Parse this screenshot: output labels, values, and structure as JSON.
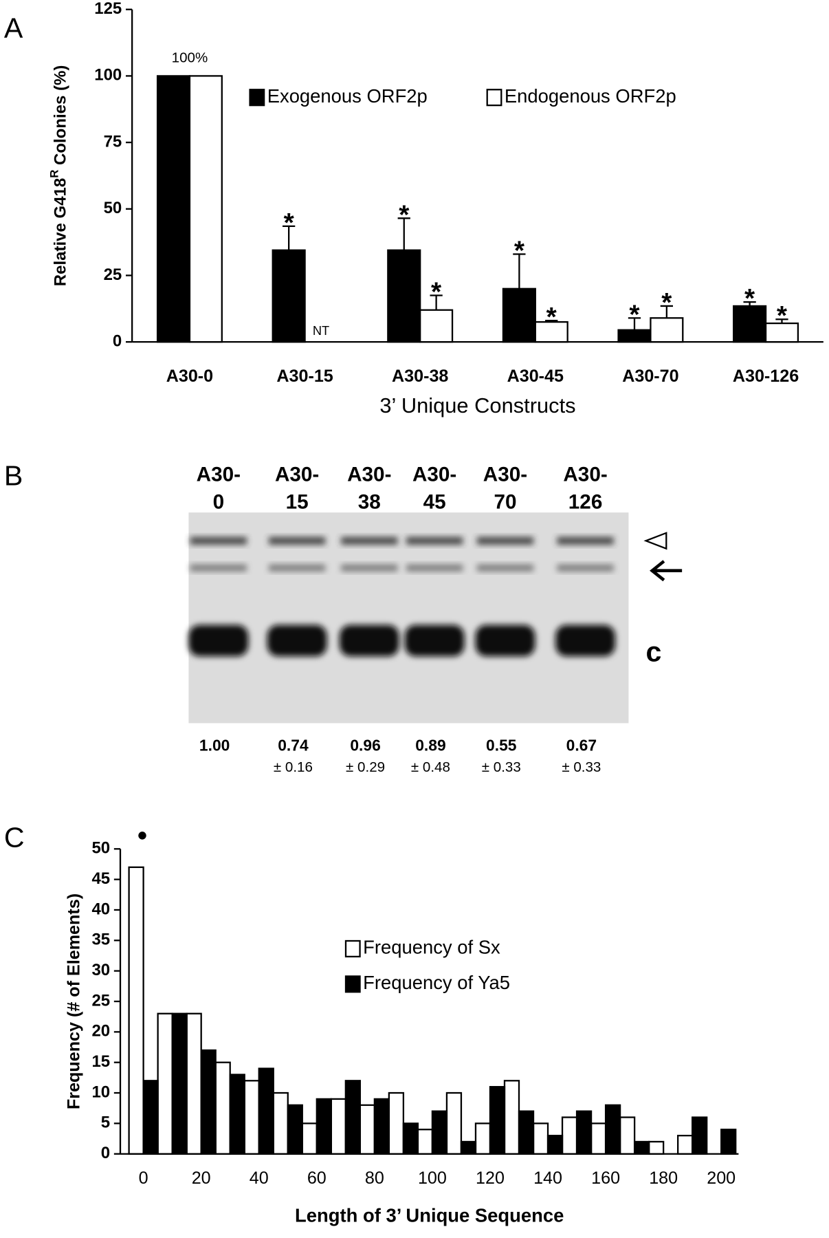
{
  "chart_data": [
    {
      "panel": "A",
      "type": "bar",
      "ylabel": [
        "Relative G418",
        "R",
        " Colonies (%)"
      ],
      "xlabel": "3’ Unique Constructs",
      "categories": [
        "A30-0",
        "A30-15",
        "A30-38",
        "A30-45",
        "A30-70",
        "A30-126"
      ],
      "series": [
        {
          "name": "Exogenous ORF2p",
          "color": "#000000",
          "values": [
            100,
            34.5,
            34.5,
            20,
            4.5,
            13.5
          ],
          "errors": [
            null,
            9,
            12,
            13,
            4.5,
            1.5
          ],
          "markers": [
            null,
            "*",
            "*",
            "*",
            "*",
            "*"
          ]
        },
        {
          "name": "Endogenous ORF2p",
          "color": "#ffffff",
          "values": [
            100,
            null,
            12,
            7.5,
            9,
            7
          ],
          "errors": [
            null,
            null,
            5.5,
            0.5,
            4.5,
            1.5
          ],
          "markers": [
            null,
            null,
            "*",
            "*",
            "*",
            "*"
          ],
          "value_labels": [
            null,
            "NT",
            null,
            null,
            null,
            null
          ]
        }
      ],
      "annotations": [
        "100%"
      ],
      "ylim": [
        0,
        125
      ],
      "yticks": [
        0,
        25,
        50,
        75,
        100,
        125
      ],
      "legend": "top"
    },
    {
      "panel": "B",
      "type": "blot",
      "lanes": [
        [
          "A30-",
          "0"
        ],
        [
          "A30-",
          "15"
        ],
        [
          "A30-",
          "38"
        ],
        [
          "A30-",
          "45"
        ],
        [
          "A30-",
          "70"
        ],
        [
          "A30-",
          "126"
        ]
      ],
      "values": [
        1,
        0.74,
        0.96,
        0.89,
        0.55,
        0.67
      ],
      "value_labels": [
        "1.00",
        null,
        null,
        null,
        null,
        null
      ],
      "errors": [
        null,
        0.16,
        0.29,
        0.48,
        0.33,
        0.33
      ],
      "error_labels": [
        null,
        "± 0.16",
        "± 0.29",
        "± 0.48",
        "± 0.33",
        "± 0.33"
      ],
      "band_label": "c"
    },
    {
      "panel": "C",
      "type": "bar",
      "ylabel": "Frequency (# of Elements)",
      "xlabel": "Length of 3’ Unique Sequence",
      "x": [
        0,
        10,
        20,
        30,
        40,
        50,
        60,
        70,
        80,
        90,
        100,
        110,
        120,
        130,
        140,
        150,
        160,
        170,
        180,
        190,
        200
      ],
      "series": [
        {
          "name": "Frequency of Sx",
          "color": "#ffffff",
          "values": [
            47,
            23,
            23,
            15,
            12,
            10,
            5,
            9,
            8,
            10,
            4,
            10,
            5,
            12,
            5,
            6,
            5,
            6,
            2,
            3,
            0
          ]
        },
        {
          "name": "Frequency of Ya5",
          "color": "#000000",
          "values": [
            12,
            23,
            17,
            13,
            14,
            8,
            9,
            12,
            9,
            5,
            7,
            2,
            11,
            7,
            3,
            7,
            8,
            2,
            0,
            6,
            4
          ]
        }
      ],
      "xlim": [
        -8,
        206
      ],
      "xticks": [
        0,
        20,
        40,
        60,
        80,
        100,
        120,
        140,
        160,
        180,
        200
      ],
      "ylim": [
        0,
        50
      ],
      "yticks": [
        0,
        5,
        10,
        15,
        20,
        25,
        30,
        35,
        40,
        45,
        50
      ],
      "legend": "center"
    }
  ]
}
